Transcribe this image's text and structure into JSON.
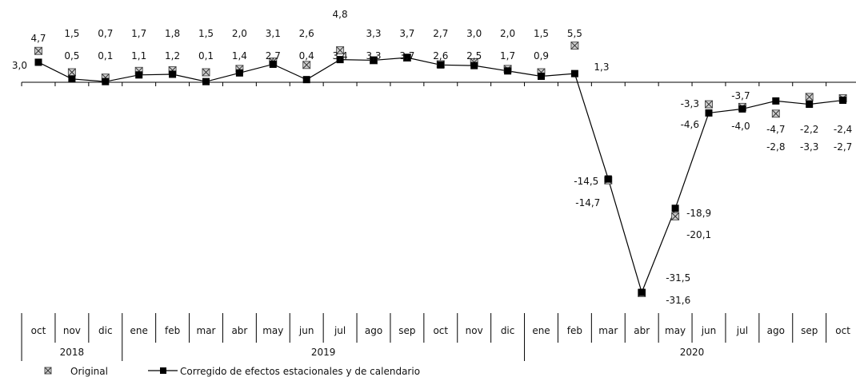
{
  "chart_data": {
    "type": "line",
    "categories": [
      "oct",
      "nov",
      "dic",
      "ene",
      "feb",
      "mar",
      "abr",
      "may",
      "jun",
      "jul",
      "ago",
      "sep",
      "oct",
      "nov",
      "dic",
      "ene",
      "feb",
      "mar",
      "abr",
      "may",
      "jun",
      "jul",
      "ago",
      "sep",
      "oct"
    ],
    "year_groups": [
      {
        "label": "2018",
        "start": 0,
        "end": 2
      },
      {
        "label": "2019",
        "start": 3,
        "end": 14
      },
      {
        "label": "2020",
        "start": 15,
        "end": 24
      }
    ],
    "series": [
      {
        "name": "Original",
        "marker": "crossed-square",
        "line": false,
        "color": "#7a7a7a",
        "values": [
          4.7,
          1.5,
          0.7,
          1.7,
          1.8,
          1.5,
          2.0,
          3.1,
          2.6,
          4.8,
          3.3,
          3.7,
          2.7,
          3.0,
          2.0,
          1.5,
          5.5,
          -14.7,
          -31.6,
          -20.1,
          -3.3,
          -3.7,
          -4.7,
          -2.2,
          -2.4
        ],
        "value_labels": [
          "4,7",
          "1,5",
          "0,7",
          "1,7",
          "1,8",
          "1,5",
          "2,0",
          "3,1",
          "2,6",
          "4,8",
          "3,3",
          "3,7",
          "2,7",
          "3,0",
          "2,0",
          "1,5",
          "5,5",
          "-14,7",
          "-31,6",
          "-20,1",
          "-3,3",
          "-3,7",
          "-4,7",
          "-2,2",
          "-2,4"
        ]
      },
      {
        "name": "Corregido de efectos estacionales y de calendario",
        "marker": "filled-square",
        "line": true,
        "color": "#000000",
        "values": [
          3.0,
          0.5,
          0.1,
          1.1,
          1.2,
          0.1,
          1.4,
          2.7,
          0.4,
          3.4,
          3.3,
          3.7,
          2.6,
          2.5,
          1.7,
          0.9,
          1.3,
          -14.5,
          -31.5,
          -18.9,
          -4.6,
          -4.0,
          -2.8,
          -3.3,
          -2.7
        ],
        "value_labels": [
          "3,0",
          "0,5",
          "0,1",
          "1,1",
          "1,2",
          "0,1",
          "1,4",
          "2,7",
          "0,4",
          "3,4",
          "3,3",
          "3,7",
          "2,6",
          "2,5",
          "1,7",
          "0,9",
          "1,3",
          "-14,5",
          "-31,5",
          "-18,9",
          "-4,6",
          "-4,0",
          "-2,8",
          "-3,3",
          "-2,7"
        ]
      }
    ],
    "legend_position": "bottom-left",
    "grid": false
  }
}
